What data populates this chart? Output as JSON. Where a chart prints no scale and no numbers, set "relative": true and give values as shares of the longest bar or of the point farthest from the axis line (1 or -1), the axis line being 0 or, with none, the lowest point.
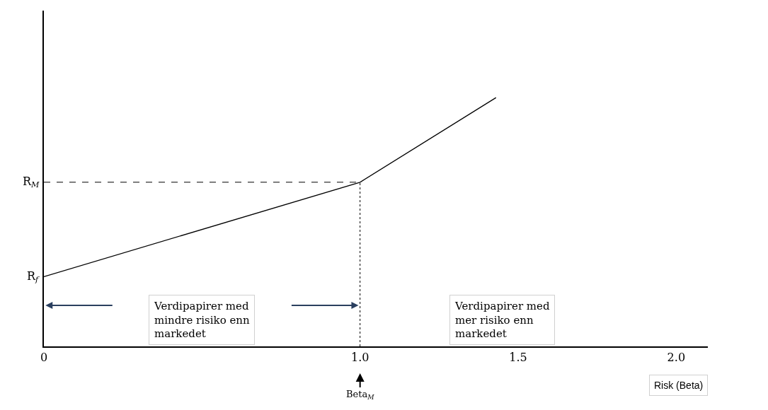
{
  "chart_data": {
    "type": "line",
    "relative": true,
    "xlabel": "Risk (Beta)",
    "x": [
      0,
      1.0,
      1.43
    ],
    "series": [
      {
        "color": "#000000",
        "values": [
          0.28,
          0.66,
          1.0
        ]
      }
    ],
    "xlim": [
      0,
      2.1
    ],
    "xticks": [
      0,
      {
        "value": 1.0,
        "label": "1.0"
      },
      1.5,
      {
        "value": 2.0,
        "label": "2.0"
      }
    ],
    "ref_lines": [
      {
        "axis": "y",
        "value": 0.66,
        "label": "R$_{M}$",
        "line_style": "dashed",
        "color": "#000000"
      },
      {
        "axis": "x",
        "value": 1.0,
        "line_style": "dotted",
        "color": "#000000"
      }
    ],
    "annotations": [
      {
        "text": "R$_{f}$",
        "x": 0,
        "y": 0.28
      },
      "Beta$_{M}$",
      "Verdipapirer med\nmindre risiko enn\nmarkedet",
      "Verdipapirer med\nmer risiko enn\nmarkedet"
    ],
    "marker": "none",
    "line_style": "solid"
  }
}
